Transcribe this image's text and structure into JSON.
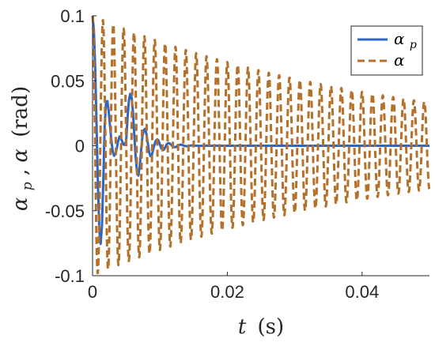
{
  "chart_data": {
    "type": "line",
    "xlabel": {
      "var": "t",
      "unit": "(s)"
    },
    "ylabel": {
      "var1": "α",
      "sub1": "p",
      "sep": ", ",
      "var2": "α",
      "unit": "(rad)"
    },
    "xlim": [
      0,
      0.05
    ],
    "ylim": [
      -0.1,
      0.1
    ],
    "xticks": [
      {
        "value": 0,
        "label": "0"
      },
      {
        "value": 0.02,
        "label": "0.02"
      },
      {
        "value": 0.04,
        "label": "0.04"
      }
    ],
    "yticks": [
      {
        "value": 0.1,
        "label": "0.1"
      },
      {
        "value": 0.05,
        "label": "0.05"
      },
      {
        "value": 0,
        "label": "0"
      },
      {
        "value": -0.05,
        "label": "-0.05"
      },
      {
        "value": -0.1,
        "label": "-0.1"
      }
    ],
    "grid": false,
    "legend_position": "top-right",
    "series": [
      {
        "name": "α_p",
        "legend_main": "α",
        "legend_sub": "p",
        "color": "#2f65c4",
        "style": "solid",
        "x": [
          0.0,
          0.0002,
          0.0004,
          0.0006,
          0.0008,
          0.001,
          0.0012,
          0.0014,
          0.0016,
          0.0018,
          0.002,
          0.0022,
          0.0024,
          0.0026,
          0.0028,
          0.003,
          0.0032,
          0.0034,
          0.0036,
          0.0038,
          0.004,
          0.0042,
          0.0044,
          0.0046,
          0.0048,
          0.005,
          0.0052,
          0.0054,
          0.0056,
          0.0058,
          0.006,
          0.0062,
          0.0064,
          0.0066,
          0.0068,
          0.007,
          0.0072,
          0.0074,
          0.0076,
          0.0078,
          0.008,
          0.0082,
          0.0084,
          0.0086,
          0.0088,
          0.009,
          0.0092,
          0.0094,
          0.0096,
          0.0098,
          0.01,
          0.0102,
          0.0104,
          0.0106,
          0.0108,
          0.011,
          0.0112,
          0.0114,
          0.0116,
          0.0118,
          0.012,
          0.0122,
          0.0124,
          0.0126,
          0.0128,
          0.013,
          0.0132,
          0.0134,
          0.0136,
          0.0138,
          0.014,
          0.0142,
          0.0144,
          0.0146,
          0.0148,
          0.015,
          0.0155,
          0.016,
          0.0165,
          0.017,
          0.0175,
          0.018,
          0.0185,
          0.019,
          0.02,
          0.025,
          0.03,
          0.035,
          0.04,
          0.045,
          0.05
        ],
        "y": [
          0.1,
          0.0892,
          0.0584,
          0.0147,
          -0.0303,
          -0.064,
          -0.0756,
          -0.0613,
          -0.0261,
          0.0149,
          0.0336,
          0.0344,
          0.0265,
          0.0148,
          0.0037,
          -0.0042,
          -0.0077,
          -0.0065,
          -0.0019,
          0.0036,
          0.0071,
          0.0059,
          0.0033,
          0.0009,
          0.0007,
          0.004,
          0.022,
          0.035,
          0.04,
          0.037,
          0.026,
          0.008,
          -0.009,
          -0.02,
          -0.023,
          -0.016,
          -0.004,
          0.007,
          0.012,
          0.013,
          0.009,
          0.002,
          -0.005,
          -0.008,
          -0.007,
          -0.003,
          0.001,
          0.004,
          0.005,
          0.004,
          0.001,
          -0.002,
          -0.003,
          -0.003,
          -0.001,
          0.001,
          0.002,
          0.002,
          0.001,
          0.0,
          -0.001,
          -0.001,
          -0.001,
          0.0,
          0.0005,
          0.0008,
          0.0008,
          0.0004,
          0.0,
          -0.0003,
          -0.0004,
          -0.0003,
          0.0,
          0.0002,
          0.0002,
          0.0001,
          0.0,
          -0.0001,
          0.0,
          0.0001,
          0.0,
          0.0,
          0.0,
          0.0,
          0.0,
          0.0,
          0.0,
          0.0,
          0.0,
          0.0,
          0.0
        ]
      },
      {
        "name": "α",
        "legend_main": "α",
        "legend_sub": "",
        "color": "#b5702a",
        "style": "dashed",
        "model": {
          "type": "damped_cosine",
          "amplitude": 0.1,
          "frequency_hz": 650,
          "decay_per_s": 22
        },
        "x_start": 0,
        "x_end": 0.05
      }
    ]
  }
}
